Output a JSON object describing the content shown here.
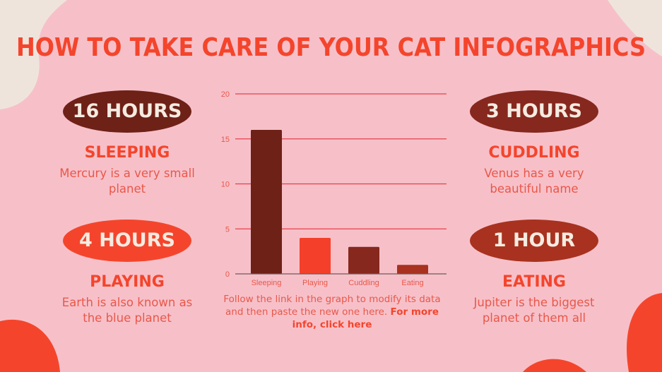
{
  "title": "HOW TO TAKE CARE OF YOUR CAT INFOGRAPHICS",
  "cards": [
    {
      "value": "16 HOURS",
      "label": "SLEEPING",
      "desc": "Mercury is a very small planet",
      "color": "#6e2117"
    },
    {
      "value": "4 HOURS",
      "label": "PLAYING",
      "desc": "Earth is also known as the blue planet",
      "color": "#f4452c"
    },
    {
      "value": "3 HOURS",
      "label": "CUDDLING",
      "desc": "Venus has a very beautiful name",
      "color": "#86281e"
    },
    {
      "value": "1 HOUR",
      "label": "EATING",
      "desc": "Jupiter is the biggest planet of them all",
      "color": "#a8321f"
    }
  ],
  "note": {
    "text": "Follow the link in the graph to modify its data and then paste the new one here. ",
    "link": "For more info, click here"
  },
  "chart_data": {
    "type": "bar",
    "categories": [
      "Sleeping",
      "Playing",
      "Cuddling",
      "Eating"
    ],
    "values": [
      16,
      4,
      3,
      1
    ],
    "colors": [
      "#6e2117",
      "#f4402a",
      "#86281e",
      "#a8321f"
    ],
    "ylim": [
      0,
      20
    ],
    "yticks": [
      0,
      5,
      10,
      15,
      20
    ],
    "grid": true,
    "xlabel": "",
    "ylabel": ""
  }
}
